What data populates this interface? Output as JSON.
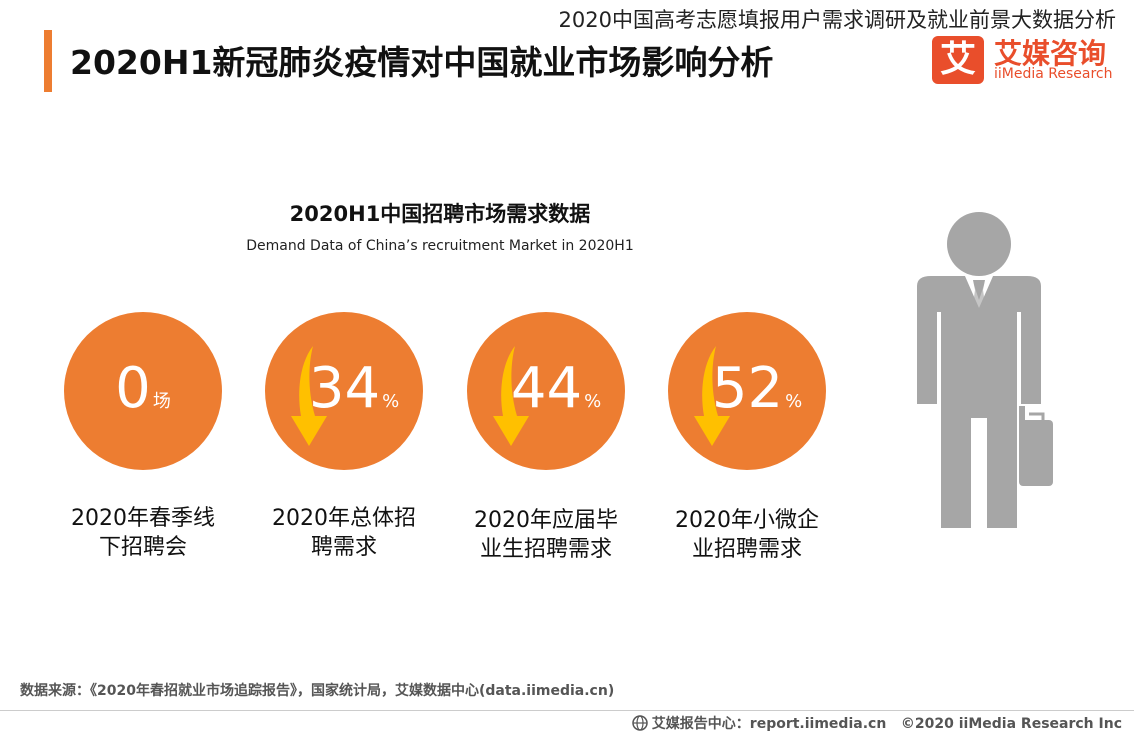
{
  "header": {
    "report_title": "2020中国高考志愿填报用户需求调研及就业前景大数据分析",
    "page_title": "2020H1新冠肺炎疫情对中国就业市场影响分析"
  },
  "logo": {
    "mark": "艾",
    "cn": "艾媒咨询",
    "en": "iiMedia Research"
  },
  "chart": {
    "title": "2020H1中国招聘市场需求数据",
    "subtitle": "Demand Data of China’s recruitment Market in 2020H1",
    "metrics": [
      {
        "value": "0",
        "unit": "场",
        "label_line1": "2020年春季线",
        "label_line2": "下招聘会",
        "arrow": false
      },
      {
        "value": "34",
        "unit": "%",
        "label_line1": "2020年总体招",
        "label_line2": "聘需求",
        "arrow": true
      },
      {
        "value": "44",
        "unit": "%",
        "label_line1": "2020年应届毕",
        "label_line2": "业生招聘需求",
        "arrow": true
      },
      {
        "value": "52",
        "unit": "%",
        "label_line1": "2020年小微企",
        "label_line2": "业招聘需求",
        "arrow": true
      }
    ],
    "circle_color": "#ed7d31",
    "arrow_color": "#ffc000"
  },
  "footer": {
    "source": "数据来源：《2020年春招就业市场追踪报告》，国家统计局，艾媒数据中心(data.iimedia.cn)",
    "report_center": "艾媒报告中心：report.iimedia.cn",
    "copyright": "©2020  iiMedia Research  Inc"
  }
}
